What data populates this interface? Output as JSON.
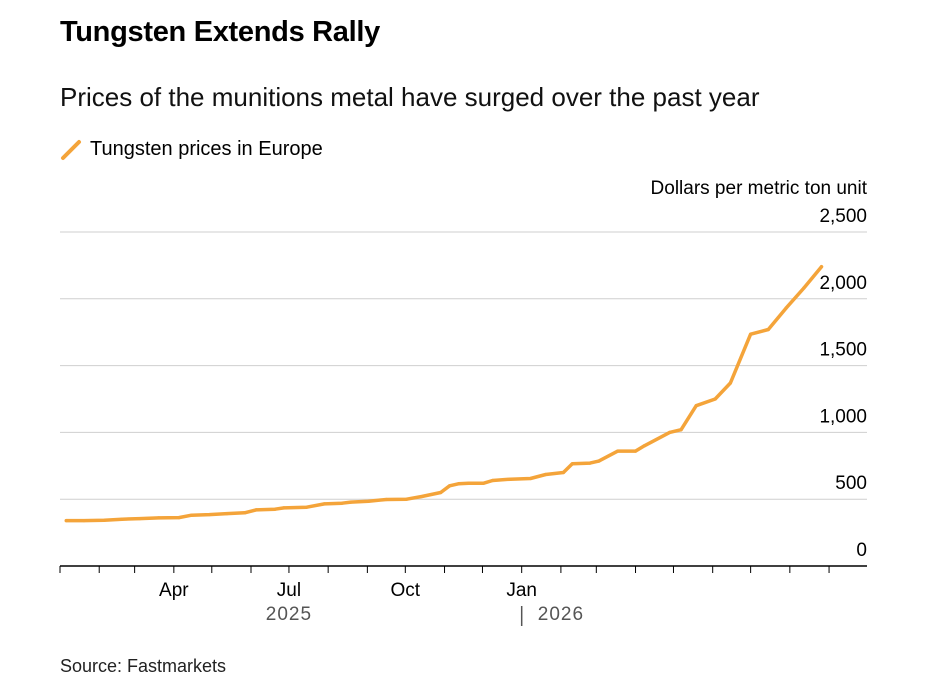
{
  "title": "Tungsten Extends Rally",
  "subtitle": "Prices of the munitions metal have surged over the past year",
  "legend_label": "Tungsten prices in Europe",
  "source": "Source: Fastmarkets",
  "colors": {
    "line": "#f4a43a",
    "grid": "#cfcfcf",
    "axis": "#000000",
    "year_label": "#555555"
  },
  "chart_data": {
    "type": "line",
    "title": "Tungsten Extends Rally",
    "subtitle": "Prices of the munitions metal have surged over the past year",
    "ylabel": "Dollars per metric ton unit",
    "ylim": [
      0,
      2500
    ],
    "y_ticks": [
      0,
      500,
      1000,
      1500,
      2000,
      2500
    ],
    "y_tick_labels": [
      "0",
      "500",
      "1,000",
      "1,500",
      "2,000",
      "2,500"
    ],
    "x_tick_labels": [
      {
        "x": "2025-04-01",
        "label": "Apr"
      },
      {
        "x": "2025-07-01",
        "label": "Jul"
      },
      {
        "x": "2025-10-01",
        "label": "Oct"
      },
      {
        "x": "2026-01-01",
        "label": "Jan"
      }
    ],
    "year_labels": [
      {
        "x": "2025-07-01",
        "label": "2025"
      },
      {
        "x": "2026-02-01",
        "label": "2026"
      }
    ],
    "grid": true,
    "legend": "top-left",
    "series": [
      {
        "name": "Tungsten prices in Europe",
        "color": "#f4a43a",
        "points": [
          {
            "x": "2025-01-06",
            "y": 340
          },
          {
            "x": "2025-01-20",
            "y": 340
          },
          {
            "x": "2025-02-05",
            "y": 342
          },
          {
            "x": "2025-02-19",
            "y": 350
          },
          {
            "x": "2025-03-05",
            "y": 355
          },
          {
            "x": "2025-03-20",
            "y": 360
          },
          {
            "x": "2025-04-05",
            "y": 362
          },
          {
            "x": "2025-04-15",
            "y": 380
          },
          {
            "x": "2025-04-29",
            "y": 385
          },
          {
            "x": "2025-05-13",
            "y": 392
          },
          {
            "x": "2025-05-27",
            "y": 398
          },
          {
            "x": "2025-06-05",
            "y": 420
          },
          {
            "x": "2025-06-20",
            "y": 425
          },
          {
            "x": "2025-06-27",
            "y": 435
          },
          {
            "x": "2025-07-15",
            "y": 440
          },
          {
            "x": "2025-07-29",
            "y": 465
          },
          {
            "x": "2025-08-12",
            "y": 470
          },
          {
            "x": "2025-08-19",
            "y": 478
          },
          {
            "x": "2025-09-02",
            "y": 485
          },
          {
            "x": "2025-09-16",
            "y": 498
          },
          {
            "x": "2025-10-02",
            "y": 500
          },
          {
            "x": "2025-10-14",
            "y": 520
          },
          {
            "x": "2025-10-29",
            "y": 550
          },
          {
            "x": "2025-11-05",
            "y": 600
          },
          {
            "x": "2025-11-12",
            "y": 615
          },
          {
            "x": "2025-11-20",
            "y": 620
          },
          {
            "x": "2025-12-02",
            "y": 620
          },
          {
            "x": "2025-12-09",
            "y": 640
          },
          {
            "x": "2025-12-23",
            "y": 650
          },
          {
            "x": "2026-01-08",
            "y": 655
          },
          {
            "x": "2026-01-20",
            "y": 685
          },
          {
            "x": "2026-02-03",
            "y": 700
          },
          {
            "x": "2026-02-10",
            "y": 765
          },
          {
            "x": "2026-02-24",
            "y": 770
          },
          {
            "x": "2026-03-03",
            "y": 785
          },
          {
            "x": "2026-03-18",
            "y": 860
          },
          {
            "x": "2026-04-01",
            "y": 860
          },
          {
            "x": "2026-04-08",
            "y": 900
          },
          {
            "x": "2026-04-28",
            "y": 1000
          },
          {
            "x": "2026-05-07",
            "y": 1020
          },
          {
            "x": "2026-05-19",
            "y": 1200
          },
          {
            "x": "2026-06-03",
            "y": 1250
          },
          {
            "x": "2026-06-15",
            "y": 1370
          },
          {
            "x": "2026-07-01",
            "y": 1735
          },
          {
            "x": "2026-07-15",
            "y": 1770
          },
          {
            "x": "2026-07-29",
            "y": 1930
          },
          {
            "x": "2026-08-12",
            "y": 2080
          },
          {
            "x": "2026-08-26",
            "y": 2240
          }
        ]
      }
    ]
  }
}
